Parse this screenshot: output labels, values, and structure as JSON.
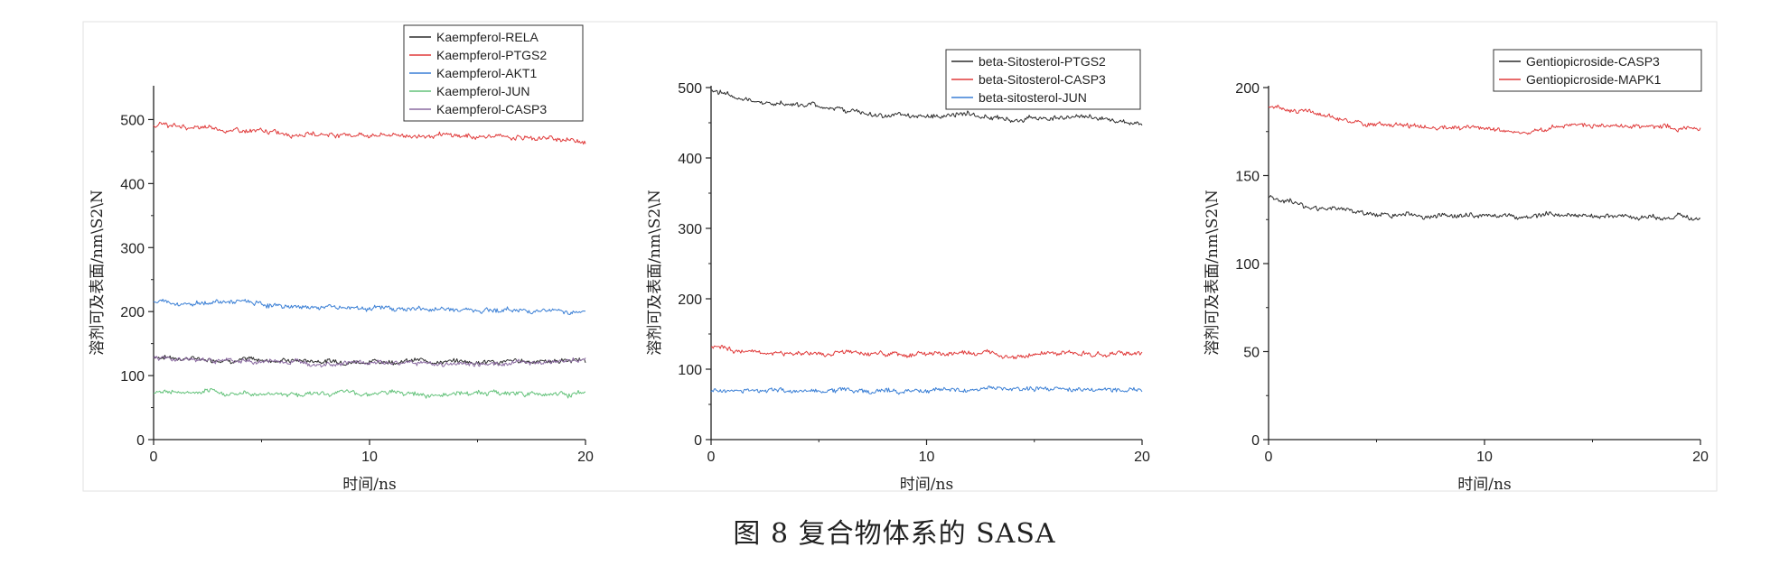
{
  "caption": "图 8 复合物体系的 SASA",
  "colors": {
    "black": "#2b2b2b",
    "red": "#e03a3a",
    "blue": "#3a7fd5",
    "green": "#63c27a",
    "purple": "#8a6aa0"
  },
  "chart_data": [
    {
      "type": "line",
      "title": "",
      "xlabel": "时间/ns",
      "ylabel": "溶剂可及表面/nm\\S2\\N",
      "xlim": [
        0,
        20
      ],
      "ylim": [
        0,
        550
      ],
      "xticks": [
        0,
        10,
        20
      ],
      "yticks": [
        0,
        100,
        200,
        300,
        400,
        500
      ],
      "grid": false,
      "legend_position": "top-right",
      "series": [
        {
          "name": "Kaempferol-RELA",
          "color": "black",
          "x": [
            0,
            2,
            4,
            6,
            8,
            10,
            12,
            14,
            16,
            18,
            20
          ],
          "values": [
            130,
            126,
            125,
            124,
            123,
            122,
            123,
            122,
            121,
            123,
            124
          ]
        },
        {
          "name": "Kaempferol-PTGS2",
          "color": "red",
          "x": [
            0,
            2,
            4,
            6,
            8,
            10,
            12,
            14,
            16,
            18,
            20
          ],
          "values": [
            492,
            487,
            482,
            479,
            477,
            476,
            475,
            474,
            473,
            471,
            467
          ]
        },
        {
          "name": "Kaempferol-AKT1",
          "color": "blue",
          "x": [
            0,
            2,
            4,
            6,
            8,
            10,
            12,
            14,
            16,
            18,
            20
          ],
          "values": [
            215,
            214,
            215,
            208,
            207,
            206,
            204,
            203,
            203,
            202,
            200
          ]
        },
        {
          "name": "Kaempferol-JUN",
          "color": "green",
          "x": [
            0,
            2,
            4,
            6,
            8,
            10,
            12,
            14,
            16,
            18,
            20
          ],
          "values": [
            75,
            73,
            72,
            72,
            72,
            73,
            72,
            72,
            73,
            72,
            72
          ]
        },
        {
          "name": "Kaempferol-CASP3",
          "color": "purple",
          "x": [
            0,
            2,
            4,
            6,
            8,
            10,
            12,
            14,
            16,
            18,
            20
          ],
          "values": [
            127,
            124,
            122,
            122,
            121,
            120,
            120,
            118,
            119,
            122,
            125
          ]
        }
      ]
    },
    {
      "type": "line",
      "title": "",
      "xlabel": "时间/ns",
      "ylabel": "溶剂可及表面/nm\\S2\\N",
      "xlim": [
        0,
        20
      ],
      "ylim": [
        0,
        500
      ],
      "xticks": [
        0,
        10,
        20
      ],
      "yticks": [
        0,
        100,
        200,
        300,
        400,
        500
      ],
      "grid": false,
      "legend_position": "top-right",
      "series": [
        {
          "name": "beta-Sitosterol-PTGS2",
          "color": "black",
          "x": [
            0,
            2,
            4,
            6,
            8,
            10,
            12,
            14,
            16,
            18,
            20
          ],
          "values": [
            497,
            480,
            476,
            470,
            458,
            460,
            462,
            455,
            458,
            456,
            452
          ]
        },
        {
          "name": "beta-Sitosterol-CASP3",
          "color": "red",
          "x": [
            0,
            2,
            4,
            6,
            8,
            10,
            12,
            14,
            16,
            18,
            20
          ],
          "values": [
            132,
            124,
            122,
            123,
            121,
            122,
            122,
            121,
            121,
            122,
            122
          ]
        },
        {
          "name": "beta-sitosterol-JUN",
          "color": "blue",
          "x": [
            0,
            2,
            4,
            6,
            8,
            10,
            12,
            14,
            16,
            18,
            20
          ],
          "values": [
            69,
            70,
            70,
            70,
            69,
            70,
            71,
            71,
            71,
            72,
            71
          ]
        }
      ]
    },
    {
      "type": "line",
      "title": "",
      "xlabel": "时间/ns",
      "ylabel": "溶剂可及表面/nm\\S2\\N",
      "xlim": [
        0,
        20
      ],
      "ylim": [
        0,
        200
      ],
      "xticks": [
        0,
        10,
        20
      ],
      "yticks": [
        0,
        50,
        100,
        150,
        200
      ],
      "grid": false,
      "legend_position": "top-right",
      "series": [
        {
          "name": "Gentiopicroside-CASP3",
          "color": "black",
          "x": [
            0,
            2,
            4,
            6,
            8,
            10,
            12,
            14,
            16,
            18,
            20
          ],
          "values": [
            138,
            132,
            129,
            128,
            127,
            127,
            127,
            128,
            127,
            126,
            126
          ]
        },
        {
          "name": "Gentiopicroside-MAPK1",
          "color": "red",
          "x": [
            0,
            2,
            4,
            6,
            8,
            10,
            12,
            14,
            16,
            18,
            20
          ],
          "values": [
            190,
            185,
            180,
            178,
            177,
            177,
            174,
            179,
            178,
            178,
            176
          ]
        }
      ]
    }
  ]
}
